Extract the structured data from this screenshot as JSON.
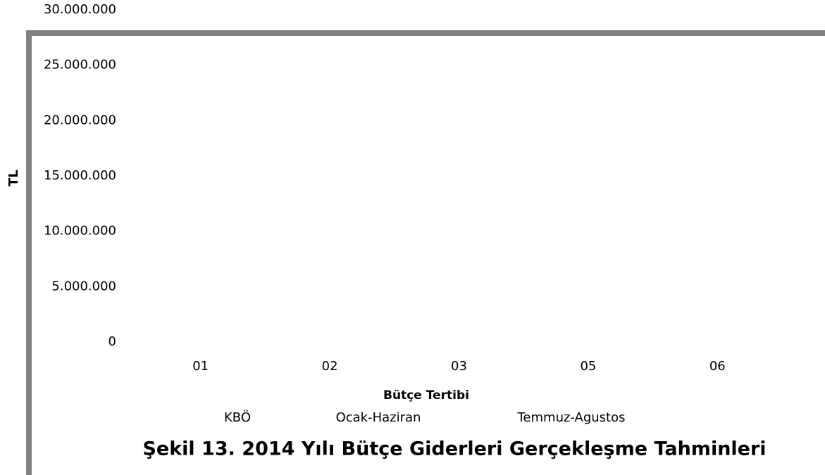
{
  "chart_data": {
    "type": "bar",
    "title": "Şekil 13. 2014 Yılı Bütçe Giderleri Gerçekleşme Tahminleri",
    "x_label": "Bütçe Tertibi",
    "y_label": "TL",
    "categories": [
      "01",
      "02",
      "03",
      "05",
      "06"
    ],
    "series": [
      {
        "name": "KBÖ",
        "values": [
          null,
          null,
          null,
          null,
          null
        ]
      },
      {
        "name": "Ocak-Haziran",
        "values": [
          null,
          null,
          null,
          null,
          null
        ]
      },
      {
        "name": "Temmuz-Agustos",
        "values": [
          null,
          null,
          null,
          null,
          null
        ]
      }
    ],
    "ylim": [
      0,
      30000000
    ],
    "yticks": [
      0,
      {
        "value": 5000000,
        "label": "5.000.000"
      },
      {
        "value": 10000000,
        "label": "10.000.000"
      },
      {
        "value": 15000000,
        "label": "15.000.000"
      },
      {
        "value": 20000000,
        "label": "20.000.000"
      },
      {
        "value": 25000000,
        "label": "25.000.000"
      },
      {
        "value": 30000000,
        "label": "30.000.000"
      }
    ],
    "legend": "bottom"
  }
}
